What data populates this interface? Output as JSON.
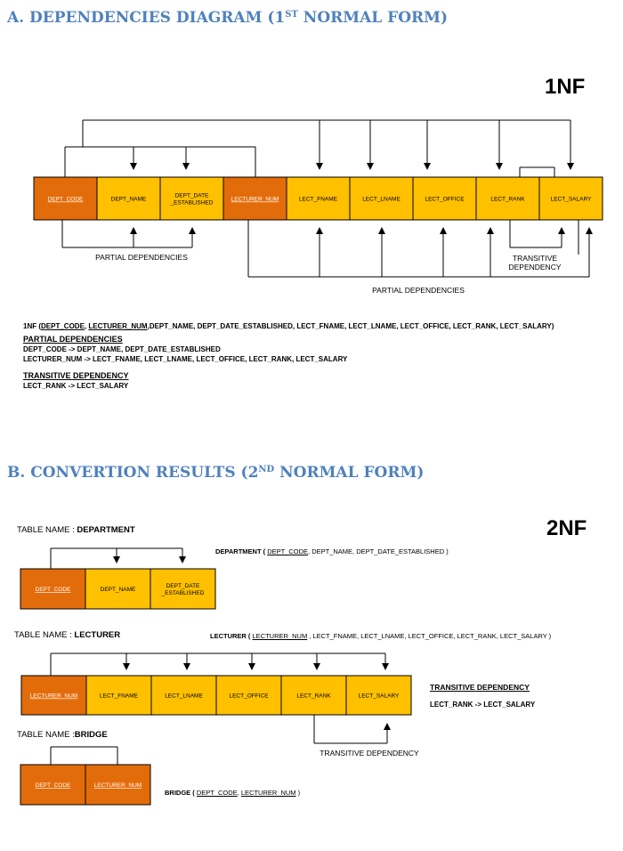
{
  "section_a": {
    "title_prefix": "A. DEPENDENCIES DIAGRAM (1",
    "title_sup": "ST",
    "title_suffix": " NORMAL FORM)",
    "nf_label": "1NF",
    "cells": [
      {
        "label": "DEPT_CODE",
        "key": true
      },
      {
        "label": "DEPT_NAME",
        "key": false
      },
      {
        "label": "DEPT_DATE _ESTABLISHED",
        "key": false
      },
      {
        "label": "LECTURER_NUM",
        "key": true
      },
      {
        "label": "LECT_FNAME",
        "key": false
      },
      {
        "label": "LECT_LNAME",
        "key": false
      },
      {
        "label": "LECT_OFFICE",
        "key": false
      },
      {
        "label": "LECT_RANK",
        "key": false
      },
      {
        "label": "LECT_SALARY",
        "key": false
      }
    ],
    "partial_label_1": "PARTIAL DEPENDENCIES",
    "partial_label_2": "PARTIAL DEPENDENCIES",
    "transitive_label_1": "TRANSITIVE",
    "transitive_label_2": "DEPENDENCY"
  },
  "notes": {
    "nf_prefix": "1NF (",
    "nf_key1": "DEPT_CODE",
    "nf_sep": ", ",
    "nf_key2": "LECTURER_NUM",
    "nf_rest": ",DEPT_NAME, DEPT_DATE_ESTABLISHED, LECT_FNAME, LECT_LNAME, LECT_OFFICE, LECT_RANK, LECT_SALARY)",
    "partial_heading": "PARTIAL DEPENDENCIES",
    "partial_1": "DEPT_CODE ->  DEPT_NAME, DEPT_DATE_ESTABLISHED",
    "partial_2": "LECTURER_NUM -> LECT_FNAME, LECT_LNAME, LECT_OFFICE, LECT_RANK, LECT_SALARY",
    "transitive_heading": "TRANSITIVE DEPENDENCY",
    "transitive_1": "LECT_RANK -> LECT_SALARY"
  },
  "section_b": {
    "title_prefix": "B. CONVERTION RESULTS (2",
    "title_sup": "ND",
    "title_suffix": " NORMAL FORM)",
    "nf_label": "2NF",
    "department": {
      "table_label": "TABLE NAME : ",
      "table_name": "DEPARTMENT",
      "schema_name": "DEPARTMENT (",
      "schema_key": "DEPT_CODE",
      "schema_rest": ", DEPT_NAME, DEPT_DATE_ESTABLISHED )",
      "cells": [
        {
          "label": "DEPT_CODE",
          "key": true
        },
        {
          "label": "DEPT_NAME",
          "key": false
        },
        {
          "label": "DEPT_DATE _ESTABLISHED",
          "key": false
        }
      ]
    },
    "lecturer": {
      "table_label": "TABLE NAME : ",
      "table_name": "LECTURER",
      "schema_name": "LECTURER (",
      "schema_key": "LECTURER_NUM",
      "schema_rest": " , LECT_FNAME, LECT_LNAME, LECT_OFFICE, LECT_RANK, LECT_SALARY )",
      "cells": [
        {
          "label": "LECTURER_NUM",
          "key": true
        },
        {
          "label": "LECT_FNAME",
          "key": false
        },
        {
          "label": "LECT_LNAME",
          "key": false
        },
        {
          "label": "LECT_OFFICE",
          "key": false
        },
        {
          "label": "LECT_RANK",
          "key": false
        },
        {
          "label": "LECT_SALARY",
          "key": false
        }
      ],
      "transitive_heading": "TRANSITIVE DEPENDENCY",
      "transitive_rule": "LECT_RANK -> LECT_SALARY",
      "transitive_label": "TRANSITIVE DEPENDENCY"
    },
    "bridge": {
      "table_label": "TABLE NAME :",
      "table_name": "BRIDGE",
      "schema_name": "BRIDGE (",
      "schema_key1": "DEPT_CODE",
      "schema_sep": ", ",
      "schema_key2": "LECTURER_NUM",
      "schema_rest": " )",
      "cells": [
        {
          "label": "DEPT_CODE",
          "key": true
        },
        {
          "label": "LECTURER_NUM",
          "key": true
        }
      ]
    }
  },
  "colors": {
    "key_fill": "#e36c0a",
    "attr_fill": "#ffc000",
    "heading": "#4f81bd"
  }
}
